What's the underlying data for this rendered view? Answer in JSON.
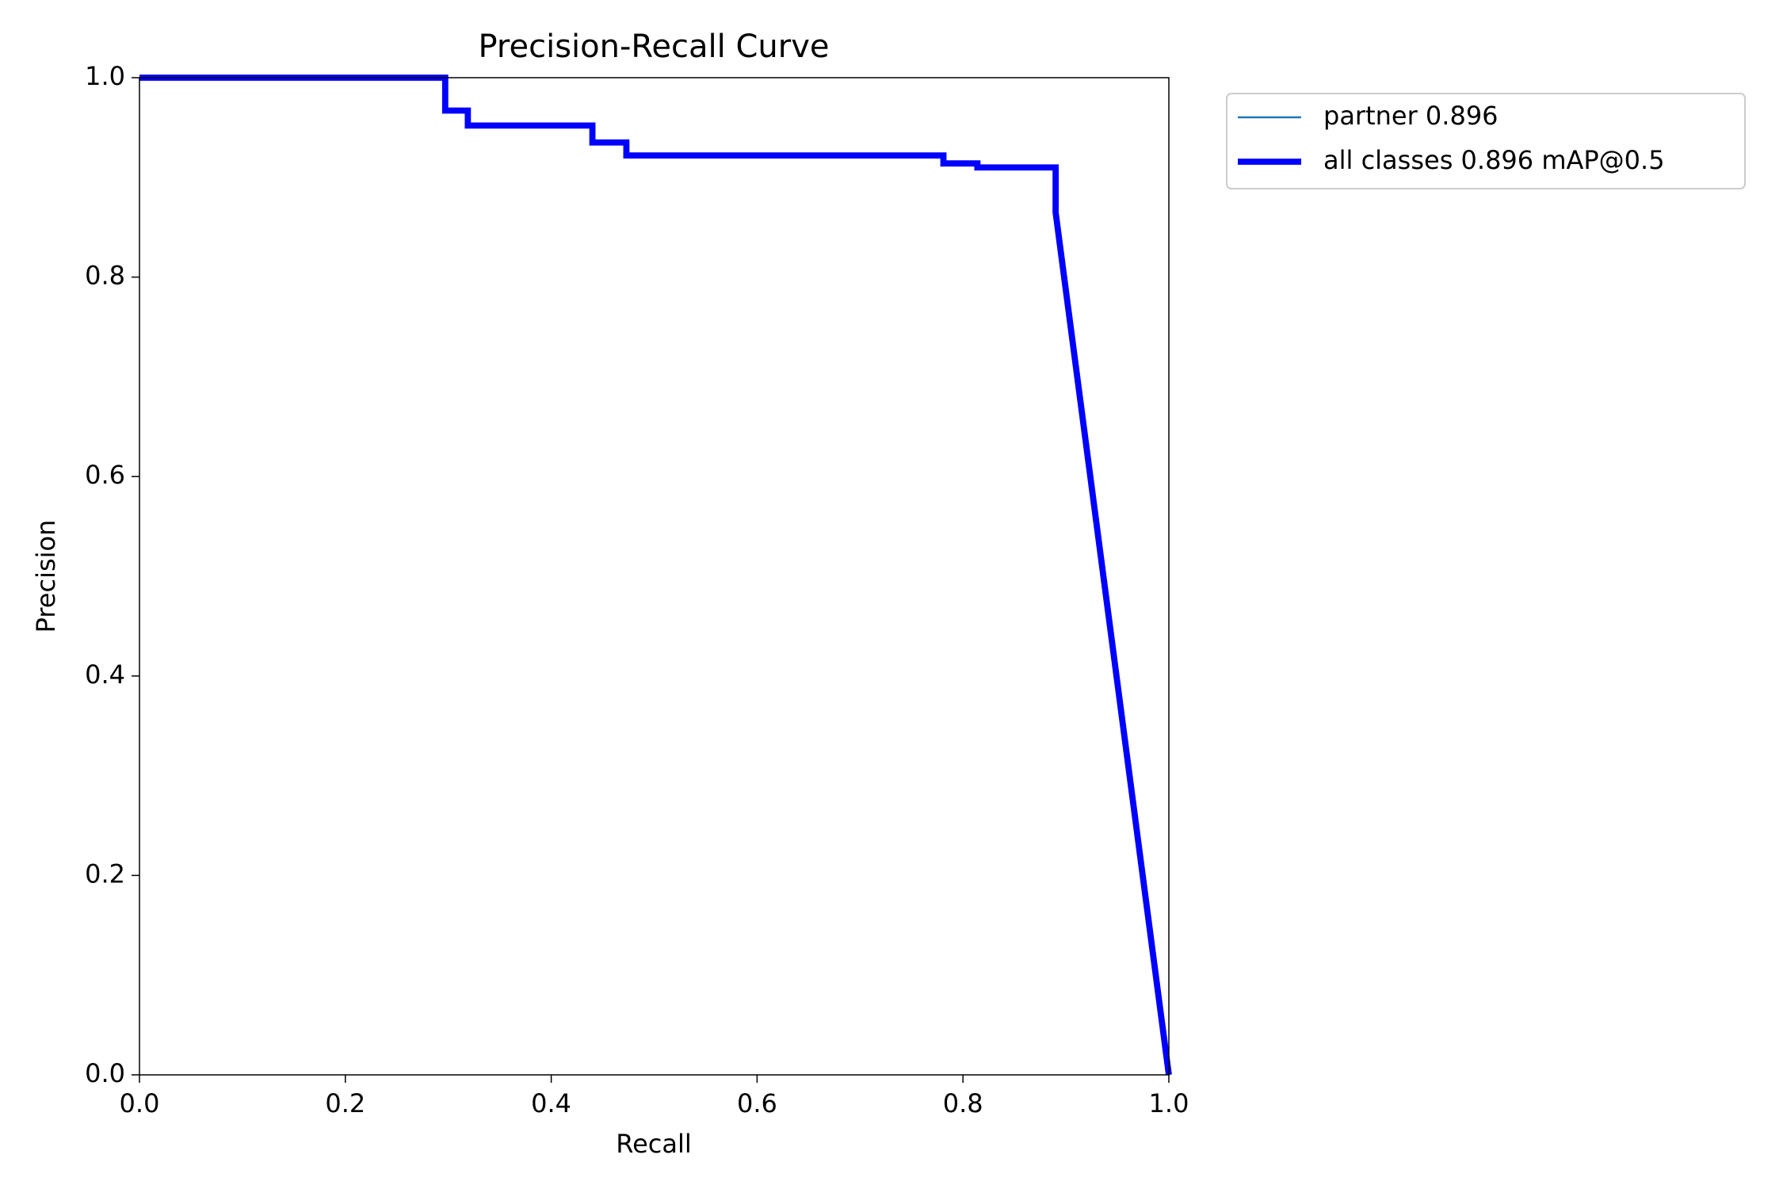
{
  "chart_data": {
    "type": "line",
    "title": "Precision-Recall Curve",
    "x_label": "Recall",
    "y_label": "Precision",
    "x": [
      0.0,
      0.297,
      0.297,
      0.319,
      0.319,
      0.44,
      0.44,
      0.473,
      0.473,
      0.781,
      0.781,
      0.814,
      0.814,
      0.89,
      0.89,
      1.0
    ],
    "series": [
      {
        "name": "partner 0.896",
        "color": "#1f77b4",
        "width": 1,
        "values": [
          1.0,
          1.0,
          0.967,
          0.967,
          0.952,
          0.952,
          0.935,
          0.935,
          0.922,
          0.922,
          0.914,
          0.914,
          0.91,
          0.91,
          0.865,
          0.0
        ]
      },
      {
        "name": "all classes 0.896 mAP@0.5",
        "color": "#0000ff",
        "width": 3,
        "values": [
          1.0,
          1.0,
          0.967,
          0.967,
          0.952,
          0.952,
          0.935,
          0.935,
          0.922,
          0.922,
          0.914,
          0.914,
          0.91,
          0.91,
          0.865,
          0.0
        ]
      }
    ],
    "xlim": [
      0,
      1
    ],
    "ylim": [
      0,
      1
    ],
    "xticks": [
      {
        "value": 0,
        "label": "0.0"
      },
      0.2,
      0.4,
      0.6,
      0.8,
      {
        "value": 1,
        "label": "1.0"
      }
    ],
    "yticks": [
      {
        "value": 0,
        "label": "0.0"
      },
      0.2,
      0.4,
      0.6,
      0.8,
      {
        "value": 1,
        "label": "1.0"
      }
    ],
    "grid": false,
    "legend": "outside upper right"
  }
}
